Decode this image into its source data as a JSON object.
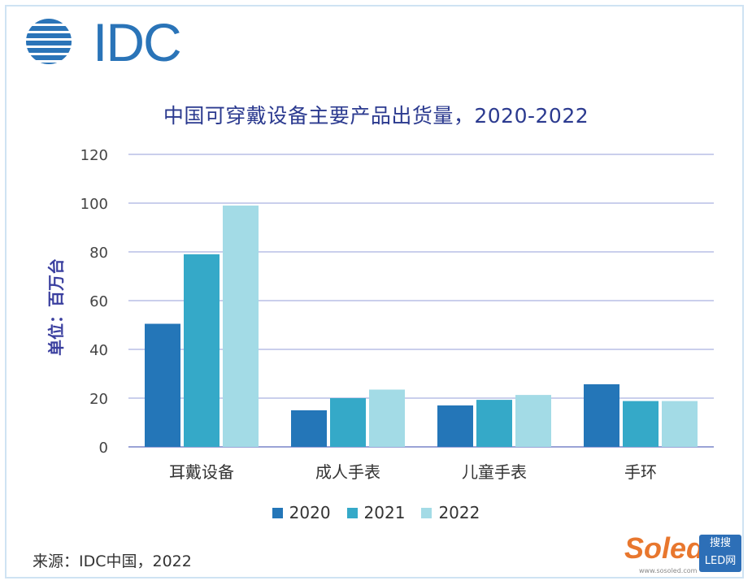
{
  "logo": {
    "text": "IDC"
  },
  "chart_data": {
    "type": "bar",
    "title": "中国可穿戴设备主要产品出货量，2020-2022",
    "ylabel": "单位：百万台",
    "xlabel": "",
    "ylim": [
      0,
      120
    ],
    "yticks": [
      0,
      20,
      40,
      60,
      80,
      100,
      120
    ],
    "categories": [
      "耳戴设备",
      "成人手表",
      "儿童手表",
      "手环"
    ],
    "series": [
      {
        "name": "2020",
        "color": "#2476b8",
        "values": [
          50.5,
          15,
          17,
          25.7
        ]
      },
      {
        "name": "2021",
        "color": "#35a9c8",
        "values": [
          79,
          20,
          19.3,
          18.8
        ]
      },
      {
        "name": "2022",
        "color": "#a3dbe6",
        "values": [
          99,
          23.5,
          21.3,
          18.8
        ]
      }
    ],
    "grid": true,
    "legend_position": "bottom"
  },
  "source": "来源：IDC中国，2022",
  "watermark": {
    "brand": "Soled",
    "box_top": "搜搜",
    "box_bottom": "LED网",
    "url": "www.sosoled.com"
  }
}
